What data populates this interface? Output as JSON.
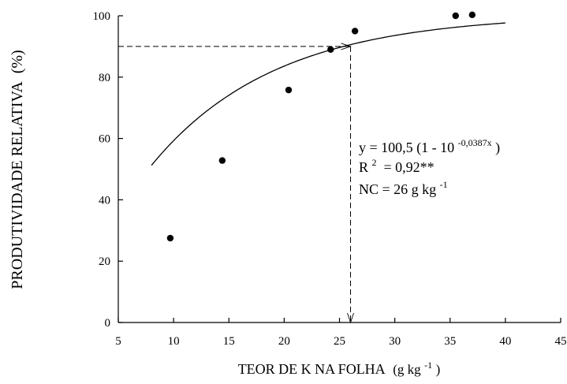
{
  "chart_data": {
    "type": "scatter",
    "title": "",
    "xlabel": "TEOR  DE  K  NA  FOLHA",
    "xlabel_unit_open": "(g kg",
    "xlabel_unit_sup": "-1",
    "xlabel_unit_close": ")",
    "ylabel": "PRODUTIVIDADE RELATIVA",
    "ylabel_unit": "(%)",
    "xlim": [
      5,
      45
    ],
    "ylim": [
      0,
      100
    ],
    "xticks": [
      5,
      10,
      15,
      20,
      25,
      30,
      35,
      40,
      45
    ],
    "yticks": [
      0,
      20,
      40,
      60,
      80,
      100
    ],
    "grid": false,
    "points": [
      {
        "x": 9.7,
        "y": 27.5
      },
      {
        "x": 14.4,
        "y": 52.8
      },
      {
        "x": 20.4,
        "y": 75.8
      },
      {
        "x": 24.2,
        "y": 89.0
      },
      {
        "x": 26.4,
        "y": 95.0
      },
      {
        "x": 35.5,
        "y": 100.0
      },
      {
        "x": 37.0,
        "y": 100.3
      }
    ],
    "fit": {
      "a": 100.5,
      "k": 0.0387,
      "x_from": 8.0,
      "x_to": 40.0
    },
    "critical_level": {
      "x": 26,
      "y": 90
    },
    "annotations": {
      "equation_pre": "y = 100,5 (1 - 10",
      "equation_sup": "-0,0387x",
      "equation_post": ")",
      "r2_pre": "R",
      "r2_sup": "2",
      "r2_post": " = 0,92**",
      "nc_pre": "NC = 26 g kg",
      "nc_sup": "-1"
    }
  }
}
